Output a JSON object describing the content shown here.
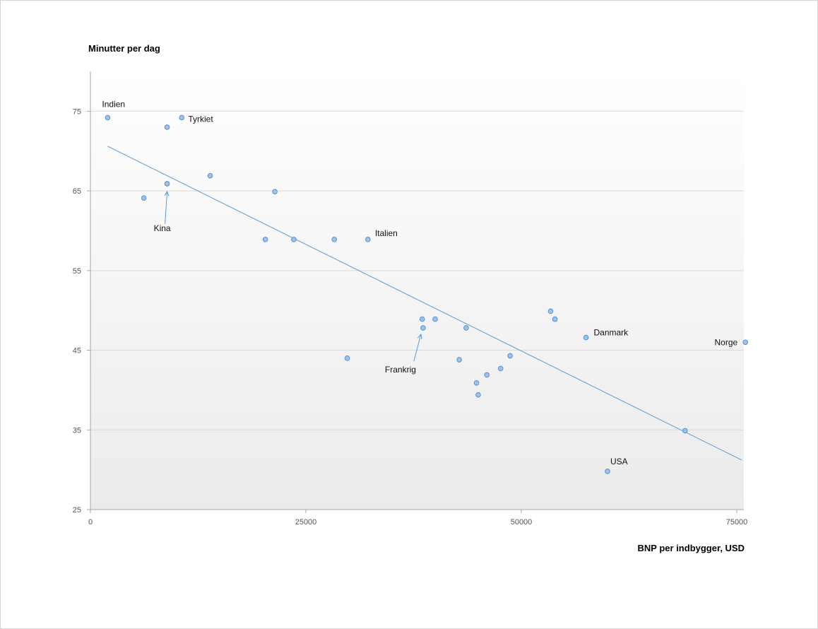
{
  "chart_data": {
    "type": "scatter",
    "title": "",
    "ylabel": "Minutter per dag",
    "xlabel": "BNP per indbygger, USD",
    "xlim": [
      0,
      75000
    ],
    "ylim": [
      25,
      80
    ],
    "xticks": [
      0,
      25000,
      50000,
      75000
    ],
    "yticks": [
      25,
      35,
      45,
      55,
      65,
      75
    ],
    "grid": "horizontal",
    "colors": {
      "point_fill": "#9cc3ea",
      "point_stroke": "#5b8fcb",
      "trendline": "#5b9bd5",
      "grid": "#d9d9d9",
      "axis": "#a6a6a6",
      "plot_bg_top": "#ffffff",
      "plot_bg_bottom": "#ebebeb"
    },
    "trendline": {
      "x": [
        2000,
        75600
      ],
      "y": [
        70.6,
        31.2
      ]
    },
    "points": [
      {
        "x": 2000,
        "y": 74.2,
        "label": "Indien"
      },
      {
        "x": 8900,
        "y": 73.0
      },
      {
        "x": 10600,
        "y": 74.2,
        "label": "Tyrkiet"
      },
      {
        "x": 6200,
        "y": 64.1
      },
      {
        "x": 8900,
        "y": 65.9,
        "label": "Kina"
      },
      {
        "x": 13900,
        "y": 66.9
      },
      {
        "x": 21400,
        "y": 64.9
      },
      {
        "x": 20300,
        "y": 58.9
      },
      {
        "x": 23600,
        "y": 58.9
      },
      {
        "x": 28300,
        "y": 58.9
      },
      {
        "x": 32200,
        "y": 58.9,
        "label": "Italien"
      },
      {
        "x": 29800,
        "y": 44.0
      },
      {
        "x": 38500,
        "y": 48.9
      },
      {
        "x": 38600,
        "y": 47.8,
        "label": "Frankrig"
      },
      {
        "x": 40000,
        "y": 48.9
      },
      {
        "x": 43600,
        "y": 47.8
      },
      {
        "x": 42800,
        "y": 43.8
      },
      {
        "x": 44800,
        "y": 40.9
      },
      {
        "x": 45000,
        "y": 39.4
      },
      {
        "x": 46000,
        "y": 41.9
      },
      {
        "x": 47600,
        "y": 42.7
      },
      {
        "x": 48700,
        "y": 44.3
      },
      {
        "x": 53400,
        "y": 49.9
      },
      {
        "x": 53900,
        "y": 48.9
      },
      {
        "x": 57500,
        "y": 46.6,
        "label": "Danmark"
      },
      {
        "x": 76000,
        "y": 46.0,
        "label": "Norge"
      },
      {
        "x": 69000,
        "y": 34.9
      },
      {
        "x": 60000,
        "y": 29.8,
        "label": "USA"
      }
    ]
  }
}
